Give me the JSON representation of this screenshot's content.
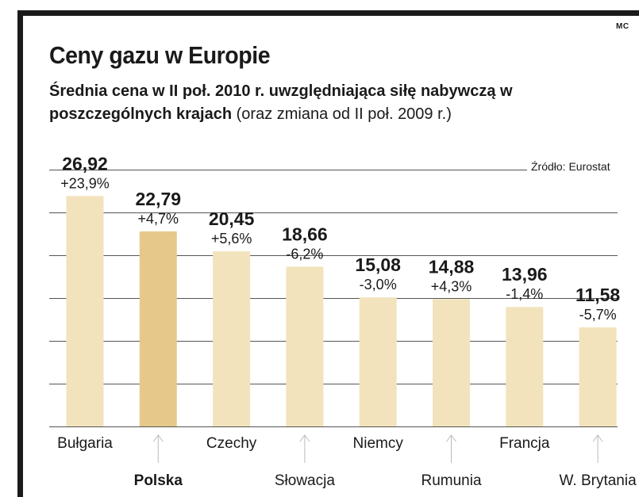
{
  "header": {
    "credit": "MC",
    "title": "Ceny gazu w Europie",
    "subtitle_bold": "Średnia cena w II poł. 2010 r. uwzględniająca siłę nabywczą w poszczególnych krajach",
    "subtitle_light": " (oraz zmiana od II poł. 2009 r.)",
    "source": "Źródło: Eurostat"
  },
  "colors": {
    "bar": "#f2e3bd",
    "bar_highlight": "#e6c98a",
    "frame": "#1a1a1a",
    "grid": "#555555"
  },
  "chart_data": {
    "type": "bar",
    "title": "Ceny gazu w Europie",
    "subtitle": "Średnia cena w II poł. 2010 r. uwzględniająca siłę nabywczą w poszczególnych krajach (oraz zmiana od II poł. 2009 r.)",
    "categories": [
      "Bułgaria",
      "Polska",
      "Czechy",
      "Słowacja",
      "Niemcy",
      "Rumunia",
      "Francja",
      "W. Brytania"
    ],
    "values": [
      26.92,
      22.79,
      20.45,
      18.66,
      15.08,
      14.88,
      13.96,
      11.58
    ],
    "value_labels": [
      "26,92",
      "22,79",
      "20,45",
      "18,66",
      "15,08",
      "14,88",
      "13,96",
      "11,58"
    ],
    "change_labels": [
      "+23,9%",
      "+4,7%",
      "+5,6%",
      "-6,2%",
      "-3,0%",
      "+4,3%",
      "-1,4%",
      "-5,7%"
    ],
    "highlight": "Polska",
    "ylim": [
      0,
      30
    ],
    "grid": true,
    "gridlines": [
      0,
      5,
      10,
      15,
      20,
      25,
      30
    ],
    "xlabel": "",
    "ylabel": "",
    "source": "Źródło: Eurostat"
  }
}
